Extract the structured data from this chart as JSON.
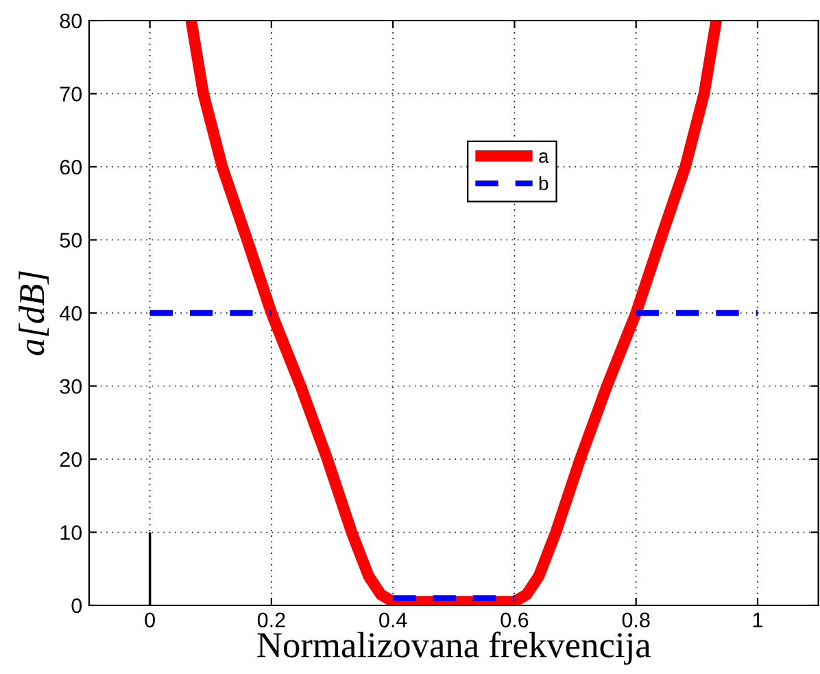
{
  "chart_data": {
    "type": "line",
    "xlabel": "Normalizovana frekvencija",
    "ylabel": "a[dB]",
    "xlim": [
      -0.1,
      1.1
    ],
    "xticks": [
      0,
      0.2,
      0.4,
      0.6,
      0.8,
      1
    ],
    "ylim": [
      0,
      80
    ],
    "yticks": [
      0,
      10,
      20,
      30,
      40,
      50,
      60,
      70,
      80
    ],
    "grid": true,
    "legend": "top",
    "marker": "none",
    "series": [
      {
        "name": "a",
        "color": "#ff0000",
        "line_style": "solid",
        "x": [
          0.068,
          0.088,
          0.119,
          0.16,
          0.2,
          0.248,
          0.292,
          0.332,
          0.36,
          0.38,
          0.4,
          0.6,
          0.62,
          0.64,
          0.668,
          0.708,
          0.752,
          0.8,
          0.84,
          0.881,
          0.912,
          0.932
        ],
        "values": [
          80,
          70,
          60,
          50,
          40,
          30,
          20,
          10,
          4,
          1.5,
          0.5,
          0.5,
          1.5,
          4,
          10,
          20,
          30,
          40,
          50,
          60,
          70,
          80
        ]
      },
      {
        "name": "b",
        "color": "#0000ff",
        "line_style": "dashed",
        "x": [
          0,
          0.2
        ],
        "values": [
          40,
          40
        ]
      },
      {
        "color": "#0000ff",
        "line_style": "dashed",
        "x": [
          0.4,
          0.6
        ],
        "values": [
          1,
          1
        ]
      },
      {
        "color": "#0000ff",
        "line_style": "dashed",
        "x": [
          0.8,
          1
        ],
        "values": [
          40,
          40
        ]
      },
      {
        "type": "bar",
        "color": "#000000",
        "x": [
          0
        ],
        "values": [
          10
        ]
      }
    ]
  }
}
